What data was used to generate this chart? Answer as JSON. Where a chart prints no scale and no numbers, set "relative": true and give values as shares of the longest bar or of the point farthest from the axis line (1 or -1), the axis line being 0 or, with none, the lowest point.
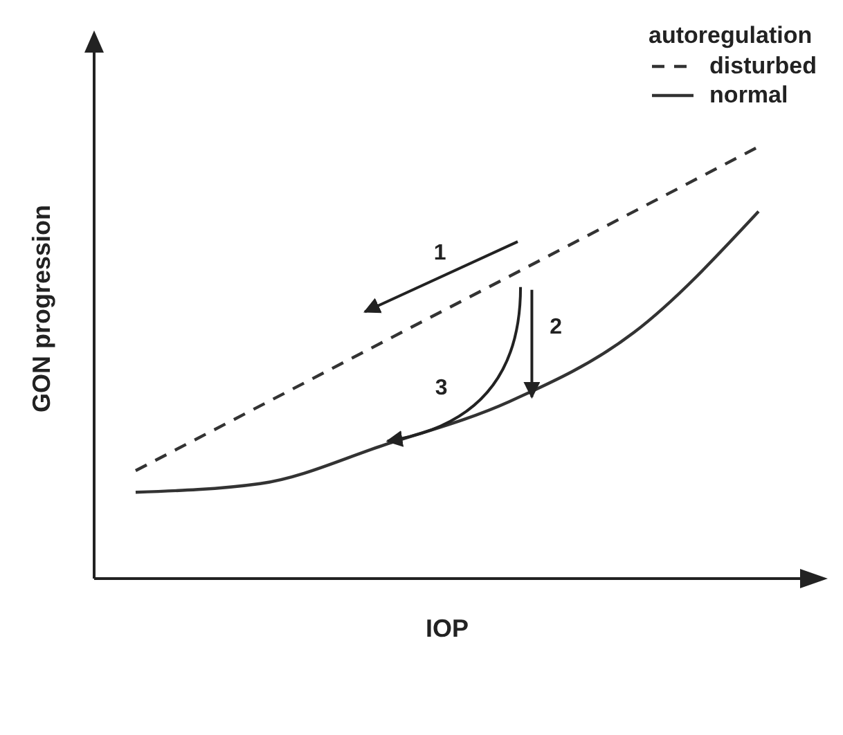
{
  "chart_data": {
    "type": "line",
    "relative": true,
    "xlabel": "IOP",
    "ylabel": "GON progression",
    "legend_title": "autoregulation",
    "legend": "top right",
    "marker": "none",
    "tick_labels": false,
    "categories": [
      null,
      null,
      null,
      null,
      null,
      null
    ],
    "series": [
      {
        "name": "disturbed",
        "color": "#333333",
        "line_style": "dashed",
        "values": [
          0.25,
          0.4,
          0.55,
          0.7,
          0.85,
          1.0
        ]
      },
      {
        "name": "normal",
        "color": "#333333",
        "line_style": "solid",
        "values": [
          0.2,
          0.22,
          0.31,
          0.41,
          0.57,
          0.85
        ]
      }
    ],
    "annotations": [
      "1",
      "2",
      "3"
    ]
  }
}
